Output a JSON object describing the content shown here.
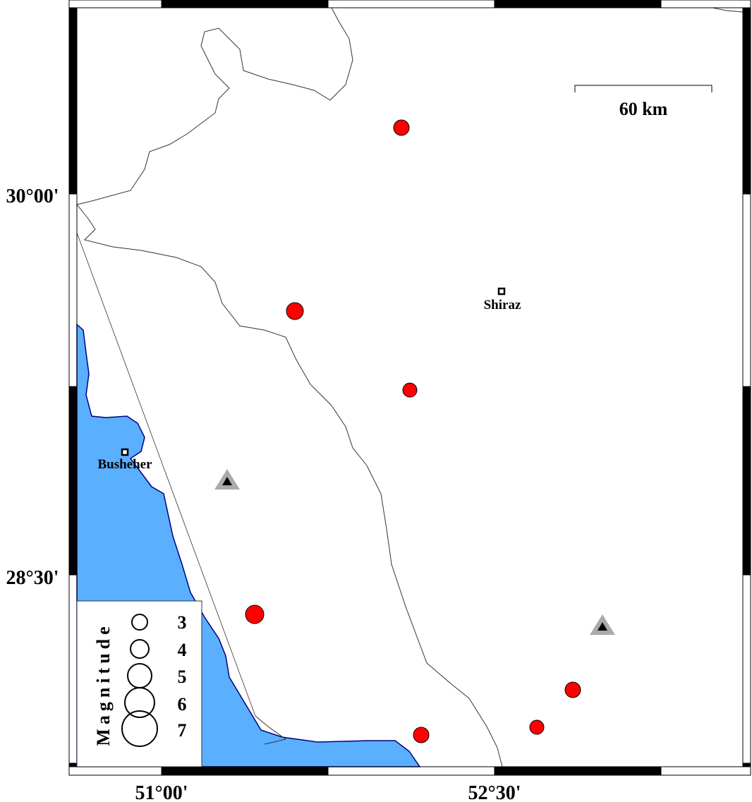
{
  "map": {
    "colors": {
      "sea": "#5aafff",
      "coastline": "#000080",
      "event": "#ff0000",
      "station_outer": "#aaaaaa",
      "station_inner": "#000000"
    },
    "axes": {
      "lat_labels": [
        "30°00'",
        "28°30'"
      ],
      "lon_labels": [
        "51°00'",
        "52°30'"
      ]
    },
    "scale_bar": {
      "label": "60 km"
    },
    "cities": [
      {
        "name": "Shiraz"
      },
      {
        "name": "Busheher"
      }
    ],
    "events": [
      {
        "magnitude": 4.5
      },
      {
        "magnitude": 4.8
      },
      {
        "magnitude": 4.2
      },
      {
        "magnitude": 5.2
      },
      {
        "magnitude": 4.5
      },
      {
        "magnitude": 4.2
      },
      {
        "magnitude": 4.5
      }
    ],
    "stations": [
      {
        "icon": "triangle"
      },
      {
        "icon": "triangle"
      }
    ],
    "legend": {
      "title": "Magnitude",
      "entries": [
        "3",
        "4",
        "5",
        "6",
        "7"
      ]
    }
  }
}
